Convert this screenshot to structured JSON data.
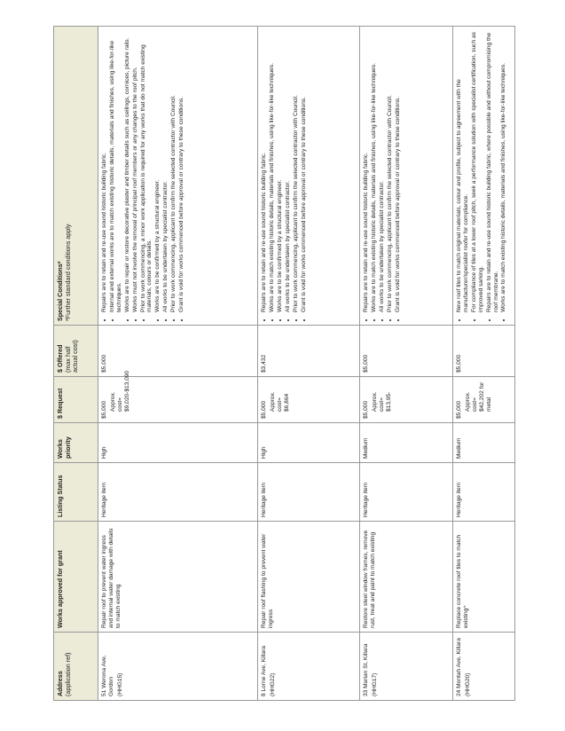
{
  "headers": {
    "address": "Address",
    "address_sub": "(application ref)",
    "works": "Works approved for grant",
    "listing": "Listing Status",
    "priority": "Works priority",
    "request": "$ Request",
    "offered": "$ Offered",
    "offered_sub": "(max half actual cost)",
    "special": "Special Conditions*",
    "special_sub": "*Further standard conditions apply"
  },
  "header_bg": "#ecebd8",
  "rows": [
    {
      "address": "51 Werona Ave, Gordon",
      "ref": "(HHG15)",
      "works": "Repair roof to prevent water ingress and internal water damage with details to match existing",
      "listing": "Heritage item",
      "priority": "High",
      "request": "$5,000",
      "approx": "Approx. cost= $9,020-$13,090",
      "offered": "$5,000",
      "conditions": [
        "Repairs are to retain and re-use sound historic building fabric.",
        "Internal and external works are to match existing historic details, materials and finishes, using like-for-like techniques.",
        "Works are to repair or restore decorative plaster and timber details such as ceilings, cornices, picture rails.",
        "Works must not involve the removal of principal roof members or any changes to the roof pitch.",
        "Prior to work commencing, a minor work application is required for any works that do not match existing materials, colours or details.",
        "Works are to be confirmed by a structural engineer.",
        "All works to be undertaken by specialist contractor.",
        "Prior to work commencing, applicant to confirm the selected contractor with Council.",
        "Grant is void for works commenced before approval or contrary to these conditions."
      ]
    },
    {
      "address": "8 Lorne Ave, Killara",
      "ref": "(HHG22)",
      "works": "Repair roof flashing to prevent water ingress",
      "listing": "Heritage item",
      "priority": "High",
      "request": "$5,000",
      "approx": "Approx. cost= $6,864",
      "offered": "$3,432",
      "conditions": [
        "Repairs are to retain and re-use sound historic building fabric.",
        "Works are to match existing historic details, materials and finishes, using like-for-like techniques.",
        "Works are to be confirmed by a structural engineer.",
        "All works to be undertaken by specialist contractor.",
        "Prior to work commencing, applicant to confirm the selected contractor with Council.",
        "Grant is void for works commenced before approval or contrary to these conditions."
      ]
    },
    {
      "address": "33 Marian St, Killara",
      "ref": "(HHG17)",
      "works": "Restore steel window frames, remove rust, treat and paint to match existing",
      "listing": "Heritage item",
      "priority": "Medium",
      "request": "$5,000",
      "approx": "Approx. cost= $13,95-",
      "offered": "$5,000",
      "conditions": [
        "Repairs are to retain and re-use sound historic building fabric.",
        "Works are to match existing historic details, materials and finishes, using like-for-like techniques.",
        "All works to be undertaken by specialist contractor.",
        "Prior to work commencing, applicant to confirm the selected contractor with Council.",
        "Grant is void for works commenced before approval or contrary to these conditions."
      ]
    },
    {
      "address": "24 Montah Ave, Killara",
      "ref": "(HHG20)",
      "works": "Replace concrete roof tiles to match existing^",
      "listing": "Heritage item",
      "priority": "Medium",
      "request": "$5,000",
      "approx": "Approx. cost= $42,202 for metal",
      "offered": "$5,000",
      "conditions": [
        "New roof tiles to match original materials, colour and profile, subject to agreement with the manufacturer/specialist roofer for compliance.",
        "For compliance of tiles at a lower roof pitch, seek a performance solution with specialist certification, such as improved sarking.",
        "Repairs are to retain and re-use sound historic building fabric, where possible and without compromising the roof membrane.",
        "Works are to match existing historic details, materials and finishes, using like-for-like techniques."
      ]
    }
  ]
}
